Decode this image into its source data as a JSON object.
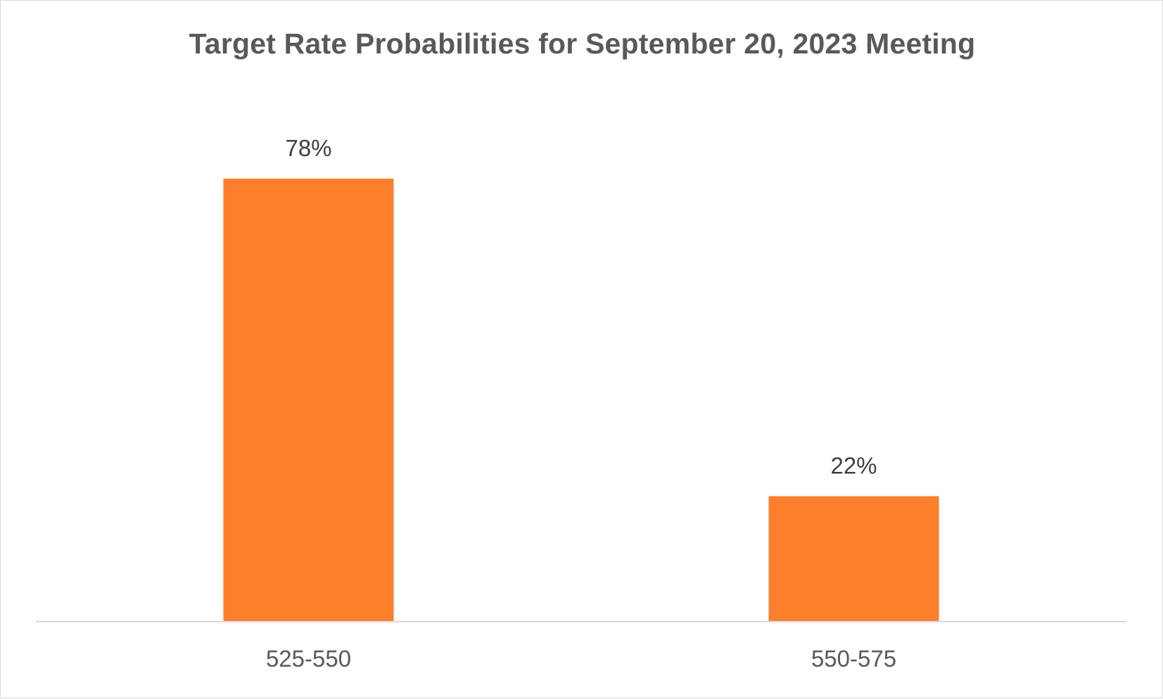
{
  "chart_data": {
    "type": "bar",
    "title": "Target Rate Probabilities for September 20, 2023 Meeting",
    "categories": [
      "525-550",
      "550-575"
    ],
    "values": [
      78,
      22
    ],
    "data_labels": [
      "78%",
      "22%"
    ],
    "xlabel": "",
    "ylabel": "",
    "ylim": [
      0,
      100
    ],
    "grid": false,
    "legend": "none",
    "bar_color": "#FD7F2C",
    "axis_color": "#d9d9d9"
  }
}
